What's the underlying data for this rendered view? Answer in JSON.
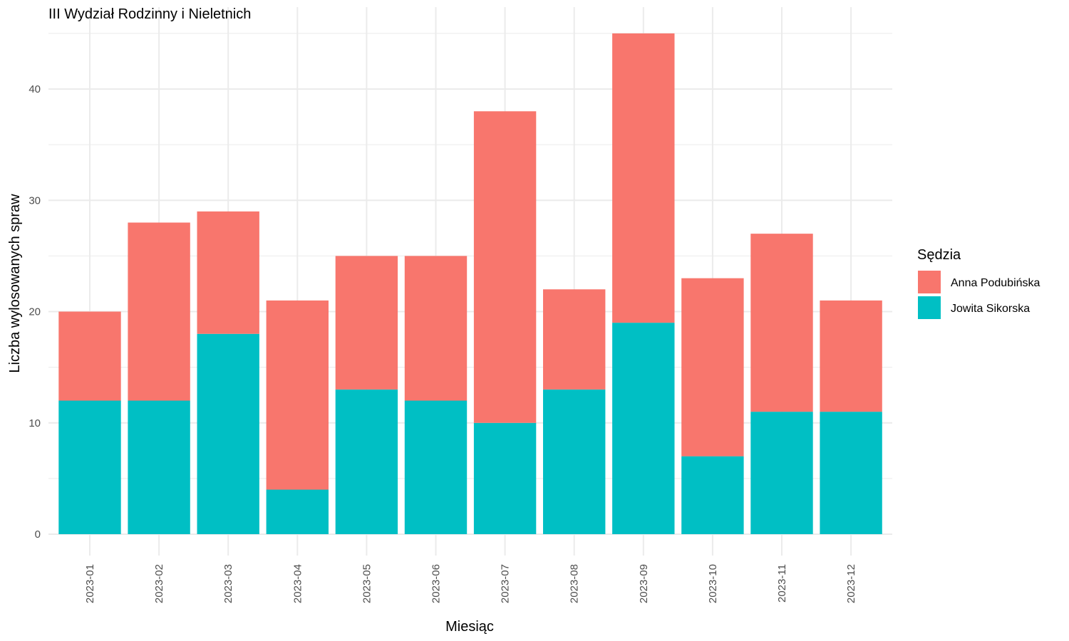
{
  "chart_data": {
    "type": "bar",
    "stacked": true,
    "title": "III Wydział Rodzinny i Nieletnich",
    "xlabel": "Miesiąc",
    "ylabel": "Liczba wylosowanych spraw",
    "ylim": [
      0,
      47
    ],
    "yticks": [
      0,
      10,
      20,
      30,
      40
    ],
    "grid": true,
    "legend": {
      "title": "Sędzia",
      "placement": "right"
    },
    "categories": [
      "2023-01",
      "2023-02",
      "2023-03",
      "2023-04",
      "2023-05",
      "2023-06",
      "2023-07",
      "2023-08",
      "2023-09",
      "2023-10",
      "2023-11",
      "2023-12"
    ],
    "series": [
      {
        "name": "Jowita Sikorska",
        "color": "#00BFC4",
        "values": [
          12,
          12,
          18,
          4,
          13,
          12,
          10,
          13,
          19,
          7,
          11,
          11
        ]
      },
      {
        "name": "Anna Podubińska",
        "color": "#F8766D",
        "values": [
          8,
          16,
          11,
          17,
          12,
          13,
          28,
          9,
          26,
          16,
          16,
          10
        ]
      }
    ]
  }
}
